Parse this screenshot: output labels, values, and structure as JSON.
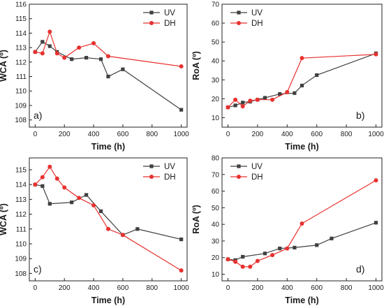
{
  "chart_data": [
    {
      "type": "line",
      "panel_label": "a)",
      "xlabel": "Time (h)",
      "ylabel": "WCA (º)",
      "xlim": [
        -40,
        1040
      ],
      "ylim": [
        107.5,
        116
      ],
      "xticks": [
        0,
        200,
        400,
        600,
        800,
        1000
      ],
      "yticks": [
        108,
        109,
        110,
        111,
        112,
        113,
        114,
        115,
        116
      ],
      "grid": false,
      "legend": "top-right",
      "series": [
        {
          "name": "UV",
          "color": "#404040",
          "marker": "square",
          "x": [
            0,
            50,
            100,
            150,
            250,
            350,
            450,
            500,
            600,
            1000
          ],
          "y": [
            112.7,
            113.4,
            113.1,
            112.7,
            112.2,
            112.3,
            112.2,
            111.0,
            111.5,
            108.7
          ]
        },
        {
          "name": "DH",
          "color": "#e8312f",
          "marker": "circle",
          "x": [
            0,
            50,
            100,
            150,
            200,
            300,
            400,
            500,
            1000
          ],
          "y": [
            112.7,
            112.6,
            114.1,
            112.6,
            112.3,
            113.0,
            113.3,
            112.4,
            111.7
          ]
        }
      ]
    },
    {
      "type": "line",
      "panel_label": "b)",
      "xlabel": "Time (h)",
      "ylabel": "RoA (º)",
      "xlim": [
        -40,
        1040
      ],
      "ylim": [
        5,
        70
      ],
      "xticks": [
        0,
        200,
        400,
        600,
        800,
        1000
      ],
      "yticks": [
        10,
        20,
        30,
        40,
        50,
        60,
        70
      ],
      "grid": false,
      "legend": "top-left",
      "series": [
        {
          "name": "UV",
          "color": "#404040",
          "marker": "square",
          "x": [
            0,
            50,
            100,
            150,
            200,
            250,
            350,
            450,
            500,
            600,
            1000
          ],
          "y": [
            15.5,
            16.5,
            18,
            18.5,
            19.5,
            20.5,
            22.5,
            23,
            27,
            32.5,
            44
          ]
        },
        {
          "name": "DH",
          "color": "#e8312f",
          "marker": "circle",
          "x": [
            0,
            50,
            100,
            150,
            200,
            300,
            400,
            500,
            1000
          ],
          "y": [
            15.5,
            19.5,
            16,
            19,
            19.5,
            19.5,
            23.5,
            41.5,
            43.5
          ]
        }
      ]
    },
    {
      "type": "line",
      "panel_label": "c)",
      "xlabel": "Time (h)",
      "ylabel": "WCA (º)",
      "xlim": [
        -40,
        1040
      ],
      "ylim": [
        107.5,
        115.8
      ],
      "xticks": [
        0,
        200,
        400,
        600,
        800,
        1000
      ],
      "yticks": [
        108,
        109,
        110,
        111,
        112,
        113,
        114,
        115
      ],
      "grid": false,
      "legend": "top-right",
      "series": [
        {
          "name": "UV",
          "color": "#404040",
          "marker": "square",
          "x": [
            0,
            50,
            100,
            250,
            350,
            450,
            600,
            700,
            1000
          ],
          "y": [
            114.0,
            113.9,
            112.7,
            112.8,
            113.3,
            112.2,
            110.6,
            111.0,
            110.3
          ]
        },
        {
          "name": "DH",
          "color": "#e8312f",
          "marker": "circle",
          "x": [
            0,
            50,
            100,
            150,
            200,
            300,
            400,
            500,
            600,
            1000
          ],
          "y": [
            114.0,
            114.5,
            115.2,
            114.4,
            113.8,
            113.1,
            112.6,
            111.0,
            110.6,
            108.2
          ]
        }
      ]
    },
    {
      "type": "line",
      "panel_label": "d)",
      "xlabel": "Time (h)",
      "ylabel": "RoA (º)",
      "xlim": [
        -40,
        1040
      ],
      "ylim": [
        6,
        80
      ],
      "xticks": [
        0,
        200,
        400,
        600,
        800,
        1000
      ],
      "yticks": [
        10,
        20,
        30,
        40,
        50,
        60,
        70,
        80
      ],
      "grid": false,
      "legend": "top-left",
      "series": [
        {
          "name": "UV",
          "color": "#404040",
          "marker": "square",
          "x": [
            0,
            50,
            100,
            250,
            350,
            450,
            600,
            700,
            1000
          ],
          "y": [
            19,
            18.5,
            20.5,
            22.5,
            25.5,
            26,
            27.5,
            31.5,
            41
          ]
        },
        {
          "name": "DH",
          "color": "#e8312f",
          "marker": "circle",
          "x": [
            0,
            50,
            100,
            150,
            200,
            300,
            400,
            500,
            1000
          ],
          "y": [
            19,
            17.5,
            14.5,
            14.5,
            18,
            21.5,
            25.5,
            40.5,
            66.5
          ]
        }
      ]
    }
  ]
}
